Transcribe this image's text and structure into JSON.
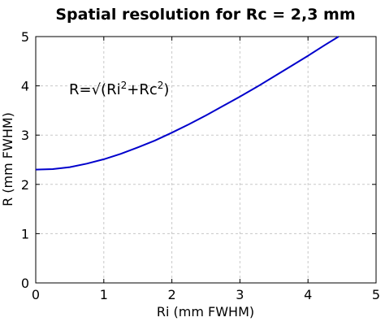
{
  "chart_data": {
    "type": "line",
    "title": "Spatial resolution for Rc = 2,3 mm",
    "xlabel": "Ri (mm FWHM)",
    "ylabel": "R (mm FWHM)",
    "xlim": [
      0,
      5
    ],
    "ylim": [
      0,
      5
    ],
    "xticks": [
      "0",
      "1",
      "2",
      "3",
      "4",
      "5"
    ],
    "yticks": [
      "0",
      "1",
      "2",
      "3",
      "4",
      "5"
    ],
    "grid": true,
    "annotation": {
      "base": "R=√(Ri",
      "sup1": "2",
      "mid": "+Rc",
      "sup2": "2",
      "end": ")"
    },
    "rc": 2.3,
    "series": [
      {
        "color": "#0000cc",
        "x": [
          0,
          0.25,
          0.5,
          0.75,
          1,
          1.25,
          1.5,
          1.75,
          2,
          2.25,
          2.5,
          2.75,
          3,
          3.25,
          3.5,
          3.75,
          4,
          4.25,
          4.45
        ],
        "y": [
          2.3,
          2.31,
          2.35,
          2.42,
          2.51,
          2.62,
          2.75,
          2.89,
          3.05,
          3.22,
          3.4,
          3.59,
          3.78,
          3.98,
          4.19,
          4.4,
          4.61,
          4.83,
          5.0
        ]
      }
    ]
  }
}
